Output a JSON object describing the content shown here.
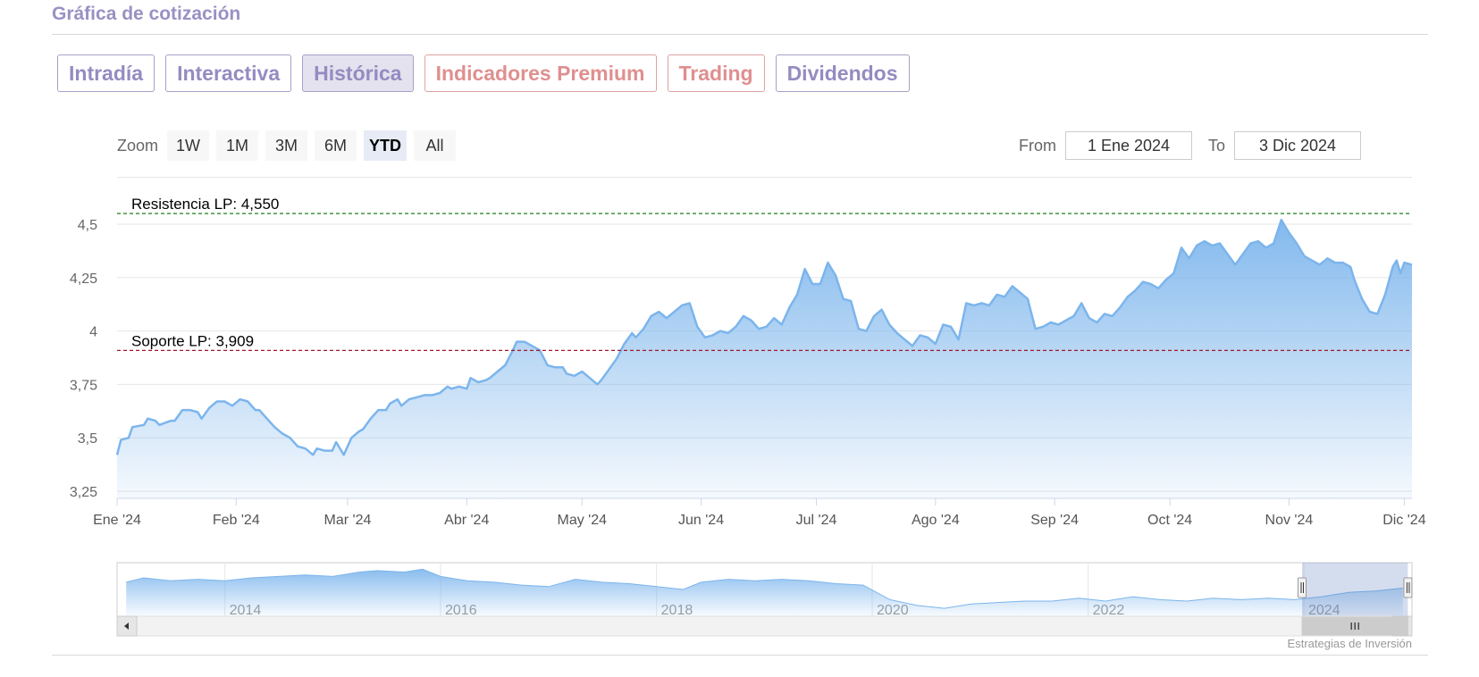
{
  "page": {
    "title": "Gráfica de cotización",
    "credit": "Estrategias de Inversión"
  },
  "tabs": [
    {
      "label": "Intradía",
      "active": false,
      "premium": false
    },
    {
      "label": "Interactiva",
      "active": false,
      "premium": false
    },
    {
      "label": "Histórica",
      "active": true,
      "premium": false
    },
    {
      "label": "Indicadores Premium",
      "active": false,
      "premium": true
    },
    {
      "label": "Trading",
      "active": false,
      "premium": true
    },
    {
      "label": "Dividendos",
      "active": false,
      "premium": false
    }
  ],
  "zoom": {
    "label": "Zoom",
    "buttons": [
      "1W",
      "1M",
      "3M",
      "6M",
      "YTD",
      "All"
    ],
    "active": "YTD"
  },
  "range": {
    "from_label": "From",
    "from_value": "1 Ene 2024",
    "to_label": "To",
    "to_value": "3 Dic 2024"
  },
  "colors": {
    "line": "#7cb5ec",
    "fill_top": "#7cb5ec",
    "resistance": "#2e8b2e",
    "support": "#a0192c",
    "tab_text": "#958bc1",
    "premium_text": "#e08f8f"
  },
  "chart_data": {
    "type": "area",
    "x_axis": {
      "range": [
        "2024-01-01",
        "2024-12-03"
      ],
      "ticks": [
        {
          "date": "2024-01-01",
          "label": "Ene '24"
        },
        {
          "date": "2024-02-01",
          "label": "Feb '24"
        },
        {
          "date": "2024-03-01",
          "label": "Mar '24"
        },
        {
          "date": "2024-04-01",
          "label": "Abr '24"
        },
        {
          "date": "2024-05-01",
          "label": "May '24"
        },
        {
          "date": "2024-06-01",
          "label": "Jun '24"
        },
        {
          "date": "2024-07-01",
          "label": "Jul '24"
        },
        {
          "date": "2024-08-01",
          "label": "Ago '24"
        },
        {
          "date": "2024-09-01",
          "label": "Sep '24"
        },
        {
          "date": "2024-10-01",
          "label": "Oct '24"
        },
        {
          "date": "2024-11-01",
          "label": "Nov '24"
        },
        {
          "date": "2024-12-01",
          "label": "Dic '24"
        }
      ]
    },
    "y_axis": {
      "range": [
        3.25,
        4.5
      ],
      "ticks": [
        {
          "value": 3.25,
          "label": "3,25"
        },
        {
          "value": 3.5,
          "label": "3,5"
        },
        {
          "value": 3.75,
          "label": "3,75"
        },
        {
          "value": 4.0,
          "label": "4"
        },
        {
          "value": 4.25,
          "label": "4,25"
        },
        {
          "value": 4.5,
          "label": "4,5"
        }
      ]
    },
    "grid": true,
    "reference_lines": [
      {
        "value": 4.55,
        "label": "Resistencia LP: 4,550",
        "style": "dashed-green"
      },
      {
        "value": 3.909,
        "label": "Soporte LP: 3,909",
        "style": "dashed-red"
      }
    ],
    "series": [
      {
        "points": [
          [
            "2024-01-01",
            3.42
          ],
          [
            "2024-01-02",
            3.49
          ],
          [
            "2024-01-04",
            3.5
          ],
          [
            "2024-01-05",
            3.55
          ],
          [
            "2024-01-08",
            3.56
          ],
          [
            "2024-01-09",
            3.59
          ],
          [
            "2024-01-11",
            3.58
          ],
          [
            "2024-01-12",
            3.56
          ],
          [
            "2024-01-15",
            3.58
          ],
          [
            "2024-01-16",
            3.58
          ],
          [
            "2024-01-18",
            3.63
          ],
          [
            "2024-01-20",
            3.63
          ],
          [
            "2024-01-22",
            3.62
          ],
          [
            "2024-01-23",
            3.59
          ],
          [
            "2024-01-25",
            3.64
          ],
          [
            "2024-01-27",
            3.67
          ],
          [
            "2024-01-29",
            3.67
          ],
          [
            "2024-01-31",
            3.65
          ],
          [
            "2024-02-02",
            3.68
          ],
          [
            "2024-02-04",
            3.67
          ],
          [
            "2024-02-06",
            3.63
          ],
          [
            "2024-02-07",
            3.63
          ],
          [
            "2024-02-09",
            3.59
          ],
          [
            "2024-02-11",
            3.55
          ],
          [
            "2024-02-13",
            3.52
          ],
          [
            "2024-02-15",
            3.5
          ],
          [
            "2024-02-17",
            3.46
          ],
          [
            "2024-02-19",
            3.45
          ],
          [
            "2024-02-21",
            3.42
          ],
          [
            "2024-02-22",
            3.45
          ],
          [
            "2024-02-24",
            3.44
          ],
          [
            "2024-02-26",
            3.44
          ],
          [
            "2024-02-27",
            3.48
          ],
          [
            "2024-02-29",
            3.42
          ],
          [
            "2024-03-02",
            3.5
          ],
          [
            "2024-03-04",
            3.53
          ],
          [
            "2024-03-05",
            3.54
          ],
          [
            "2024-03-07",
            3.59
          ],
          [
            "2024-03-09",
            3.63
          ],
          [
            "2024-03-11",
            3.63
          ],
          [
            "2024-03-12",
            3.66
          ],
          [
            "2024-03-14",
            3.68
          ],
          [
            "2024-03-15",
            3.65
          ],
          [
            "2024-03-17",
            3.68
          ],
          [
            "2024-03-19",
            3.69
          ],
          [
            "2024-03-21",
            3.7
          ],
          [
            "2024-03-23",
            3.7
          ],
          [
            "2024-03-25",
            3.71
          ],
          [
            "2024-03-27",
            3.74
          ],
          [
            "2024-03-28",
            3.73
          ],
          [
            "2024-03-30",
            3.74
          ],
          [
            "2024-04-01",
            3.73
          ],
          [
            "2024-04-02",
            3.78
          ],
          [
            "2024-04-04",
            3.76
          ],
          [
            "2024-04-06",
            3.77
          ],
          [
            "2024-04-07",
            3.78
          ],
          [
            "2024-04-09",
            3.81
          ],
          [
            "2024-04-11",
            3.84
          ],
          [
            "2024-04-13",
            3.91
          ],
          [
            "2024-04-14",
            3.95
          ],
          [
            "2024-04-16",
            3.95
          ],
          [
            "2024-04-18",
            3.93
          ],
          [
            "2024-04-20",
            3.91
          ],
          [
            "2024-04-22",
            3.84
          ],
          [
            "2024-04-24",
            3.83
          ],
          [
            "2024-04-26",
            3.83
          ],
          [
            "2024-04-27",
            3.8
          ],
          [
            "2024-04-29",
            3.79
          ],
          [
            "2024-05-01",
            3.81
          ],
          [
            "2024-05-03",
            3.78
          ],
          [
            "2024-05-05",
            3.75
          ],
          [
            "2024-05-06",
            3.77
          ],
          [
            "2024-05-08",
            3.82
          ],
          [
            "2024-05-10",
            3.87
          ],
          [
            "2024-05-12",
            3.94
          ],
          [
            "2024-05-14",
            3.99
          ],
          [
            "2024-05-15",
            3.97
          ],
          [
            "2024-05-17",
            4.01
          ],
          [
            "2024-05-19",
            4.07
          ],
          [
            "2024-05-21",
            4.09
          ],
          [
            "2024-05-23",
            4.06
          ],
          [
            "2024-05-25",
            4.09
          ],
          [
            "2024-05-27",
            4.12
          ],
          [
            "2024-05-29",
            4.13
          ],
          [
            "2024-05-31",
            4.02
          ],
          [
            "2024-06-02",
            3.97
          ],
          [
            "2024-06-04",
            3.98
          ],
          [
            "2024-06-06",
            4.0
          ],
          [
            "2024-06-08",
            3.99
          ],
          [
            "2024-06-10",
            4.02
          ],
          [
            "2024-06-12",
            4.07
          ],
          [
            "2024-06-14",
            4.05
          ],
          [
            "2024-06-16",
            4.01
          ],
          [
            "2024-06-18",
            4.02
          ],
          [
            "2024-06-20",
            4.06
          ],
          [
            "2024-06-22",
            4.03
          ],
          [
            "2024-06-24",
            4.11
          ],
          [
            "2024-06-26",
            4.17
          ],
          [
            "2024-06-28",
            4.29
          ],
          [
            "2024-06-30",
            4.22
          ],
          [
            "2024-07-02",
            4.22
          ],
          [
            "2024-07-04",
            4.32
          ],
          [
            "2024-07-06",
            4.26
          ],
          [
            "2024-07-08",
            4.15
          ],
          [
            "2024-07-10",
            4.14
          ],
          [
            "2024-07-12",
            4.01
          ],
          [
            "2024-07-14",
            4.0
          ],
          [
            "2024-07-16",
            4.07
          ],
          [
            "2024-07-18",
            4.1
          ],
          [
            "2024-07-20",
            4.03
          ],
          [
            "2024-07-22",
            3.99
          ],
          [
            "2024-07-24",
            3.96
          ],
          [
            "2024-07-26",
            3.93
          ],
          [
            "2024-07-28",
            3.98
          ],
          [
            "2024-07-30",
            3.97
          ],
          [
            "2024-08-01",
            3.94
          ],
          [
            "2024-08-03",
            4.03
          ],
          [
            "2024-08-05",
            4.02
          ],
          [
            "2024-08-07",
            3.96
          ],
          [
            "2024-08-09",
            4.13
          ],
          [
            "2024-08-11",
            4.12
          ],
          [
            "2024-08-13",
            4.13
          ],
          [
            "2024-08-15",
            4.12
          ],
          [
            "2024-08-17",
            4.17
          ],
          [
            "2024-08-19",
            4.16
          ],
          [
            "2024-08-21",
            4.21
          ],
          [
            "2024-08-23",
            4.18
          ],
          [
            "2024-08-25",
            4.15
          ],
          [
            "2024-08-27",
            4.01
          ],
          [
            "2024-08-29",
            4.02
          ],
          [
            "2024-08-31",
            4.04
          ],
          [
            "2024-09-02",
            4.03
          ],
          [
            "2024-09-04",
            4.05
          ],
          [
            "2024-09-06",
            4.07
          ],
          [
            "2024-09-08",
            4.13
          ],
          [
            "2024-09-10",
            4.06
          ],
          [
            "2024-09-12",
            4.04
          ],
          [
            "2024-09-14",
            4.08
          ],
          [
            "2024-09-16",
            4.07
          ],
          [
            "2024-09-18",
            4.11
          ],
          [
            "2024-09-20",
            4.16
          ],
          [
            "2024-09-22",
            4.19
          ],
          [
            "2024-09-24",
            4.23
          ],
          [
            "2024-09-26",
            4.22
          ],
          [
            "2024-09-28",
            4.2
          ],
          [
            "2024-09-30",
            4.24
          ],
          [
            "2024-10-02",
            4.27
          ],
          [
            "2024-10-04",
            4.39
          ],
          [
            "2024-10-06",
            4.34
          ],
          [
            "2024-10-08",
            4.4
          ],
          [
            "2024-10-10",
            4.42
          ],
          [
            "2024-10-12",
            4.4
          ],
          [
            "2024-10-14",
            4.41
          ],
          [
            "2024-10-16",
            4.36
          ],
          [
            "2024-10-18",
            4.31
          ],
          [
            "2024-10-20",
            4.36
          ],
          [
            "2024-10-22",
            4.41
          ],
          [
            "2024-10-24",
            4.42
          ],
          [
            "2024-10-26",
            4.39
          ],
          [
            "2024-10-28",
            4.41
          ],
          [
            "2024-10-30",
            4.52
          ],
          [
            "2024-11-01",
            4.46
          ],
          [
            "2024-11-03",
            4.41
          ],
          [
            "2024-11-05",
            4.35
          ],
          [
            "2024-11-07",
            4.33
          ],
          [
            "2024-11-09",
            4.31
          ],
          [
            "2024-11-11",
            4.34
          ],
          [
            "2024-11-13",
            4.32
          ],
          [
            "2024-11-15",
            4.32
          ],
          [
            "2024-11-17",
            4.3
          ],
          [
            "2024-11-18",
            4.24
          ],
          [
            "2024-11-20",
            4.15
          ],
          [
            "2024-11-22",
            4.09
          ],
          [
            "2024-11-24",
            4.08
          ],
          [
            "2024-11-26",
            4.17
          ],
          [
            "2024-11-28",
            4.3
          ],
          [
            "2024-11-29",
            4.33
          ],
          [
            "2024-11-30",
            4.27
          ],
          [
            "2024-12-01",
            4.32
          ],
          [
            "2024-12-03",
            4.31
          ]
        ]
      }
    ],
    "navigator": {
      "axis_labels": [
        {
          "date": "2014-01-01",
          "label": "2014"
        },
        {
          "date": "2016-01-01",
          "label": "2016"
        },
        {
          "date": "2018-01-01",
          "label": "2018"
        },
        {
          "date": "2020-01-01",
          "label": "2020"
        },
        {
          "date": "2022-01-01",
          "label": "2022"
        },
        {
          "date": "2024-01-01",
          "label": "2024"
        }
      ],
      "range": [
        "2013-01-01",
        "2025-01-01"
      ],
      "selected": [
        "2024-01-01",
        "2024-12-03"
      ],
      "points": [
        [
          "2013-02-01",
          4.6
        ],
        [
          "2013-04-01",
          4.9
        ],
        [
          "2013-07-01",
          4.7
        ],
        [
          "2013-10-01",
          4.8
        ],
        [
          "2014-01-01",
          4.7
        ],
        [
          "2014-04-01",
          4.9
        ],
        [
          "2014-07-01",
          5.0
        ],
        [
          "2014-10-01",
          5.1
        ],
        [
          "2015-01-01",
          5.0
        ],
        [
          "2015-04-01",
          5.3
        ],
        [
          "2015-06-01",
          5.4
        ],
        [
          "2015-09-01",
          5.3
        ],
        [
          "2015-11-01",
          5.5
        ],
        [
          "2016-01-01",
          5.0
        ],
        [
          "2016-04-01",
          4.7
        ],
        [
          "2016-07-01",
          4.6
        ],
        [
          "2016-10-01",
          4.4
        ],
        [
          "2017-01-01",
          4.3
        ],
        [
          "2017-04-01",
          4.8
        ],
        [
          "2017-07-01",
          4.6
        ],
        [
          "2017-10-01",
          4.5
        ],
        [
          "2018-01-01",
          4.3
        ],
        [
          "2018-04-01",
          4.1
        ],
        [
          "2018-06-01",
          4.6
        ],
        [
          "2018-09-01",
          4.8
        ],
        [
          "2018-12-01",
          4.7
        ],
        [
          "2019-03-01",
          4.8
        ],
        [
          "2019-06-01",
          4.7
        ],
        [
          "2019-09-01",
          4.5
        ],
        [
          "2019-12-01",
          4.4
        ],
        [
          "2020-03-01",
          3.4
        ],
        [
          "2020-06-01",
          3.0
        ],
        [
          "2020-09-01",
          2.8
        ],
        [
          "2020-12-01",
          3.1
        ],
        [
          "2021-03-01",
          3.2
        ],
        [
          "2021-06-01",
          3.3
        ],
        [
          "2021-09-01",
          3.3
        ],
        [
          "2021-12-01",
          3.5
        ],
        [
          "2022-03-01",
          3.3
        ],
        [
          "2022-06-01",
          3.6
        ],
        [
          "2022-09-01",
          3.4
        ],
        [
          "2022-12-01",
          3.3
        ],
        [
          "2023-03-01",
          3.5
        ],
        [
          "2023-06-01",
          3.4
        ],
        [
          "2023-09-01",
          3.5
        ],
        [
          "2023-12-01",
          3.4
        ],
        [
          "2024-03-01",
          3.6
        ],
        [
          "2024-06-01",
          3.9
        ],
        [
          "2024-09-01",
          4.0
        ],
        [
          "2024-12-01",
          4.2
        ]
      ]
    }
  }
}
